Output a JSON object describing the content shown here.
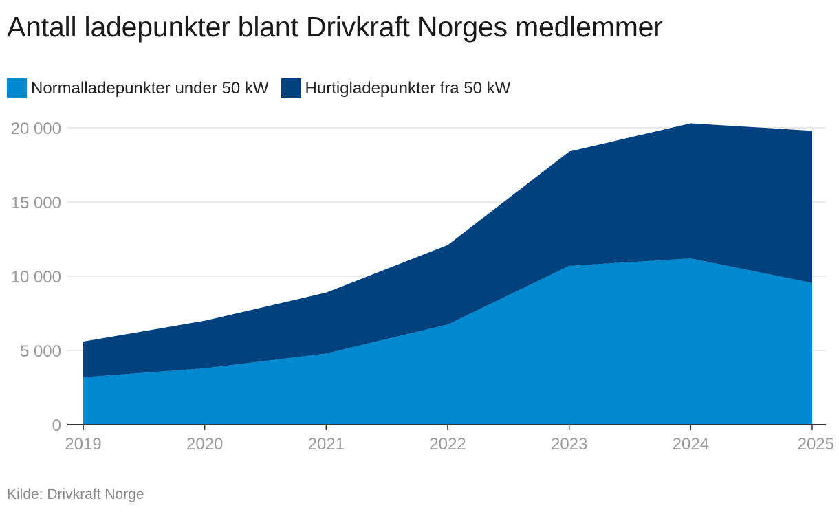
{
  "chart_data": {
    "type": "area",
    "stacked": true,
    "title": "Antall ladepunkter blant Drivkraft Norges medlemmer",
    "x": [
      "2019",
      "2020",
      "2021",
      "2022",
      "2023",
      "2024",
      "2025"
    ],
    "series": [
      {
        "name": "Normalladepunkter under 50 kW",
        "color": "#0089cf",
        "values": [
          3200,
          3800,
          4800,
          6750,
          10700,
          11200,
          9550
        ]
      },
      {
        "name": "Hurtigladepunkter fra 50 kW",
        "color": "#00417e",
        "values": [
          2400,
          3200,
          4100,
          5350,
          7700,
          9100,
          10250
        ]
      }
    ],
    "ylim": [
      0,
      20000
    ],
    "yticks": [
      0,
      5000,
      10000,
      15000,
      20000
    ],
    "ytick_labels": [
      "0",
      "5 000",
      "10 000",
      "15 000",
      "20 000"
    ],
    "grid": true,
    "legend_position": "top-left",
    "source": "Kilde: Drivkraft Norge"
  }
}
